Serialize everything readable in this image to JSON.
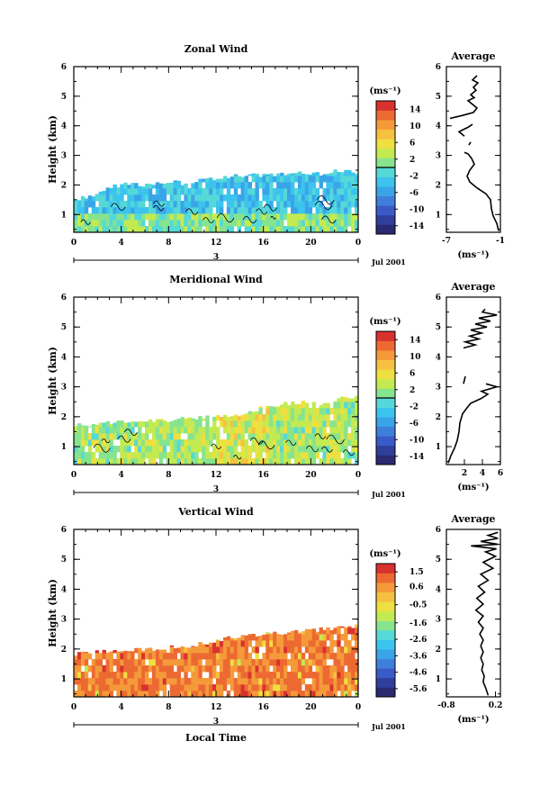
{
  "colors": {
    "scale": [
      "#2a2a70",
      "#2f3f9a",
      "#3a5ac8",
      "#3f7fdc",
      "#3aa4e8",
      "#3cc4ee",
      "#55d8d8",
      "#86e48e",
      "#c4ea52",
      "#eee040",
      "#f6c040",
      "#f59a3a",
      "#ec6a32",
      "#d8322e"
    ],
    "contour": "#000000",
    "background": "#ffffff"
  },
  "chart_data": [
    {
      "type": "heatmap",
      "title": "Zonal Wind",
      "ylabel": "Height (km)",
      "xlim": [
        0,
        24
      ],
      "ylim": [
        0.4,
        6
      ],
      "xticks": [
        "0",
        "4",
        "8",
        "12",
        "16",
        "20",
        "0"
      ],
      "yticks": [
        "1",
        "2",
        "3",
        "4",
        "5",
        "6"
      ],
      "day_label": "3",
      "date_label": "Jul 2001",
      "colorbar": {
        "unit": "(ms⁻¹)",
        "ticks": [
          "14",
          "10",
          "6",
          "2",
          "-2",
          "-6",
          "-10",
          "-14"
        ],
        "min": -16,
        "max": 16,
        "zero_line": 0
      },
      "data_top_km": [
        1.5,
        1.65,
        1.95,
        2.05,
        2.0,
        2.1,
        2.05,
        2.2,
        2.25,
        2.35,
        2.3,
        2.4,
        2.45,
        2.4,
        2.5,
        2.45
      ],
      "mean_value": -3,
      "profile": {
        "title": "Average",
        "xlabel": "(ms⁻¹)",
        "xlim": [
          -7,
          -1
        ],
        "xticks": [
          "-7",
          "-1"
        ],
        "points": [
          [
            -1.2,
            0.45
          ],
          [
            -1.4,
            0.7
          ],
          [
            -1.8,
            0.95
          ],
          [
            -2.0,
            1.2
          ],
          [
            -2.1,
            1.5
          ],
          [
            -2.6,
            1.7
          ],
          [
            -3.6,
            1.9
          ],
          [
            -4.4,
            2.1
          ],
          [
            -4.7,
            2.3
          ],
          [
            -4.4,
            2.5
          ],
          [
            -3.9,
            2.7
          ],
          [
            -4.2,
            2.9
          ],
          [
            -4.6,
            3.05
          ],
          [
            -5.0,
            3.1
          ]
        ],
        "extra_segments": [
          [
            [
              -4.5,
              3.35
            ],
            [
              -4.3,
              3.45
            ]
          ],
          [
            [
              -5.0,
              3.65
            ],
            [
              -5.6,
              3.8
            ],
            [
              -4.6,
              3.95
            ],
            [
              -4.1,
              4.05
            ]
          ],
          [
            [
              -6.6,
              4.25
            ],
            [
              -5.2,
              4.35
            ],
            [
              -4.0,
              4.45
            ],
            [
              -3.6,
              4.6
            ],
            [
              -4.6,
              4.85
            ],
            [
              -3.9,
              4.95
            ],
            [
              -4.3,
              5.05
            ],
            [
              -3.7,
              5.2
            ],
            [
              -4.0,
              5.3
            ],
            [
              -3.5,
              5.45
            ],
            [
              -4.1,
              5.55
            ],
            [
              -3.6,
              5.7
            ]
          ]
        ]
      }
    },
    {
      "type": "heatmap",
      "title": "Meridional Wind",
      "ylabel": "Height (km)",
      "xlim": [
        0,
        24
      ],
      "ylim": [
        0.4,
        6
      ],
      "xticks": [
        "0",
        "4",
        "8",
        "12",
        "16",
        "20",
        "0"
      ],
      "yticks": [
        "1",
        "2",
        "3",
        "4",
        "5",
        "6"
      ],
      "day_label": "3",
      "date_label": "Jul 2001",
      "colorbar": {
        "unit": "(ms⁻¹)",
        "ticks": [
          "14",
          "10",
          "6",
          "2",
          "-2",
          "-6",
          "-10",
          "-14"
        ],
        "min": -16,
        "max": 16,
        "zero_line": 0
      },
      "data_top_km": [
        1.7,
        1.75,
        1.8,
        1.85,
        1.85,
        1.9,
        1.95,
        2.0,
        2.05,
        2.1,
        2.3,
        2.4,
        2.5,
        2.4,
        2.6,
        2.7
      ],
      "mean_value": 2.5,
      "profile": {
        "title": "Average",
        "xlabel": "(ms⁻¹)",
        "xlim": [
          0,
          6
        ],
        "xticks": [
          "2",
          "4",
          "6"
        ],
        "points": [
          [
            0.2,
            0.45
          ],
          [
            0.5,
            0.7
          ],
          [
            0.9,
            0.95
          ],
          [
            1.2,
            1.2
          ],
          [
            1.4,
            1.5
          ],
          [
            1.5,
            1.8
          ],
          [
            1.8,
            2.1
          ],
          [
            2.3,
            2.3
          ],
          [
            2.7,
            2.45
          ],
          [
            3.8,
            2.6
          ],
          [
            4.6,
            2.75
          ],
          [
            3.9,
            2.85
          ],
          [
            5.6,
            3.0
          ],
          [
            4.4,
            3.1
          ]
        ],
        "extra_segments": [
          [
            [
              1.9,
              3.1
            ],
            [
              2.1,
              3.35
            ]
          ],
          [
            [
              1.9,
              4.3
            ],
            [
              3.2,
              4.4
            ],
            [
              2.1,
              4.5
            ],
            [
              3.6,
              4.6
            ],
            [
              2.6,
              4.7
            ],
            [
              3.9,
              4.8
            ],
            [
              2.7,
              4.9
            ],
            [
              4.5,
              5.0
            ],
            [
              3.2,
              5.1
            ],
            [
              4.9,
              5.2
            ],
            [
              3.6,
              5.3
            ],
            [
              5.6,
              5.4
            ],
            [
              4.0,
              5.5
            ],
            [
              4.3,
              5.6
            ]
          ]
        ]
      }
    },
    {
      "type": "heatmap",
      "title": "Vertical Wind",
      "ylabel": "Height (km)",
      "xlabel": "Local Time",
      "xlim": [
        0,
        24
      ],
      "ylim": [
        0.4,
        6
      ],
      "xticks": [
        "0",
        "4",
        "8",
        "12",
        "16",
        "20",
        "0"
      ],
      "yticks": [
        "1",
        "2",
        "3",
        "4",
        "5",
        "6"
      ],
      "day_label": "3",
      "date_label": "Jul 2001",
      "colorbar": {
        "unit": "(ms⁻¹)",
        "ticks": [
          "1.5",
          "0.6",
          "-0.5",
          "-1.6",
          "-2.6",
          "-3.6",
          "-4.6",
          "-5.6"
        ],
        "min": -6.1,
        "max": 2.0
      },
      "data_top_km": [
        1.85,
        1.9,
        1.95,
        1.95,
        2.0,
        2.05,
        2.1,
        2.2,
        2.35,
        2.45,
        2.5,
        2.55,
        2.6,
        2.65,
        2.7,
        2.75
      ],
      "mean_value": 0.9,
      "profile": {
        "title": "Average",
        "xlabel": "(ms⁻¹)",
        "xlim": [
          -0.8,
          0.3
        ],
        "xticks": [
          "-0.8",
          "0.2"
        ],
        "points": [
          [
            0.05,
            0.45
          ],
          [
            0.0,
            0.7
          ],
          [
            -0.05,
            0.9
          ],
          [
            -0.03,
            1.1
          ],
          [
            -0.08,
            1.3
          ],
          [
            -0.05,
            1.5
          ],
          [
            -0.1,
            1.7
          ],
          [
            -0.05,
            1.9
          ],
          [
            -0.1,
            2.1
          ],
          [
            -0.05,
            2.3
          ],
          [
            -0.12,
            2.5
          ],
          [
            -0.05,
            2.7
          ],
          [
            -0.15,
            2.9
          ],
          [
            -0.05,
            3.1
          ],
          [
            -0.2,
            3.3
          ],
          [
            -0.05,
            3.5
          ],
          [
            -0.18,
            3.7
          ],
          [
            -0.02,
            3.9
          ],
          [
            -0.15,
            4.1
          ],
          [
            0.05,
            4.3
          ],
          [
            -0.1,
            4.5
          ],
          [
            0.15,
            4.7
          ],
          [
            -0.05,
            4.9
          ],
          [
            0.2,
            5.1
          ],
          [
            0.0,
            5.25
          ],
          [
            0.22,
            5.35
          ],
          [
            -0.3,
            5.45
          ],
          [
            0.25,
            5.5
          ],
          [
            -0.1,
            5.6
          ],
          [
            0.25,
            5.7
          ],
          [
            0.05,
            5.8
          ],
          [
            0.25,
            5.9
          ]
        ]
      }
    }
  ]
}
